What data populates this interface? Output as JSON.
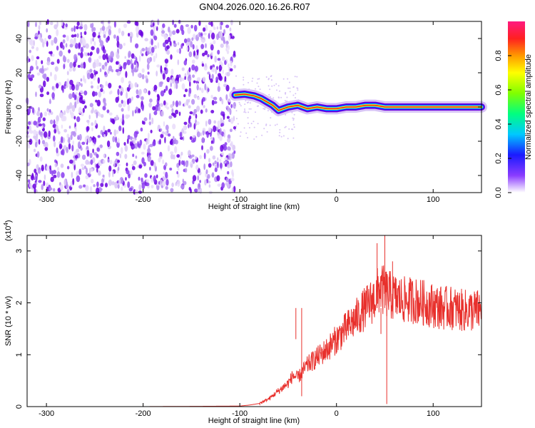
{
  "title": "GN04.2026.020.16.26.R07",
  "colors": {
    "snr_line": "#e8302c",
    "purple_dark": "#6a00e0",
    "purple_light": "#d8c4f6",
    "axis": "#000000"
  },
  "chart_data": [
    {
      "type": "heatmap",
      "xlabel": "Height of straight line (km)",
      "ylabel": "Frequency (Hz)",
      "xlim": [
        -320,
        150
      ],
      "ylim": [
        -50,
        50
      ],
      "xticks": [
        -300,
        -200,
        -100,
        0,
        100
      ],
      "xtick_labels": [
        "-300",
        "-200",
        "-100",
        "0",
        "100"
      ],
      "yticks": [
        -40,
        -20,
        0,
        20,
        40
      ],
      "ytick_labels": [
        "-40",
        "-20",
        "0",
        "20",
        "40"
      ],
      "noise_region": {
        "x_from": -320,
        "x_to": -105
      },
      "signal_trace": {
        "x": [
          -105,
          -95,
          -85,
          -78,
          -72,
          -66,
          -60,
          -50,
          -40,
          -30,
          -20,
          -10,
          0,
          10,
          20,
          30,
          40,
          50,
          60,
          80,
          100,
          120,
          150
        ],
        "freq": [
          7,
          7.5,
          6.5,
          5,
          3,
          1,
          -2,
          0,
          1,
          -1,
          0,
          -1,
          -1,
          0,
          0,
          1,
          1,
          0,
          0,
          0,
          0,
          0,
          0
        ]
      },
      "colorbar": {
        "label": "Normalized spectral amplitude",
        "range": [
          0,
          1
        ],
        "ticks": [
          0,
          0.2,
          0.4,
          0.6,
          0.8
        ],
        "tick_labels": [
          "0.0",
          "0.2",
          "0.4",
          "0.6",
          "0.8"
        ]
      }
    },
    {
      "type": "line",
      "xlabel": "Height of straight line (km)",
      "ylabel": "SNR (10 * v/v)",
      "y_multiplier_label": "(x10",
      "y_multiplier_exp": "4",
      "y_multiplier_close": ")",
      "xlim": [
        -320,
        150
      ],
      "ylim": [
        0,
        3.3
      ],
      "xticks": [
        -300,
        -200,
        -100,
        0,
        100
      ],
      "xtick_labels": [
        "-300",
        "-200",
        "-100",
        "0",
        "100"
      ],
      "yticks": [
        0,
        1,
        2,
        3
      ],
      "ytick_labels": [
        "0",
        "1",
        "2",
        "3"
      ],
      "series": [
        {
          "name": "SNR",
          "x": [
            -320,
            -200,
            -100,
            -90,
            -80,
            -70,
            -60,
            -50,
            -45,
            -40,
            -30,
            -20,
            -10,
            0,
            10,
            20,
            30,
            40,
            45,
            50,
            55,
            60,
            70,
            80,
            90,
            100,
            110,
            120,
            130,
            140,
            150
          ],
          "values": [
            0,
            0,
            0.01,
            0.03,
            0.06,
            0.15,
            0.3,
            0.45,
            0.6,
            0.55,
            0.8,
            0.95,
            1.1,
            1.3,
            1.5,
            1.7,
            1.9,
            2.1,
            2.3,
            2.2,
            2.15,
            2.1,
            2.05,
            2.05,
            2.0,
            1.95,
            1.9,
            1.9,
            1.85,
            1.85,
            1.85
          ]
        }
      ],
      "spikes": [
        {
          "x": -42,
          "value": 1.3
        },
        {
          "x": -36,
          "value": 0.2
        },
        {
          "x": 42,
          "value": 3.15
        },
        {
          "x": 46,
          "value": 1.4
        },
        {
          "x": 50,
          "value": 3.3
        },
        {
          "x": 52,
          "value": 0.05
        },
        {
          "x": 58,
          "value": 2.8
        }
      ]
    }
  ]
}
